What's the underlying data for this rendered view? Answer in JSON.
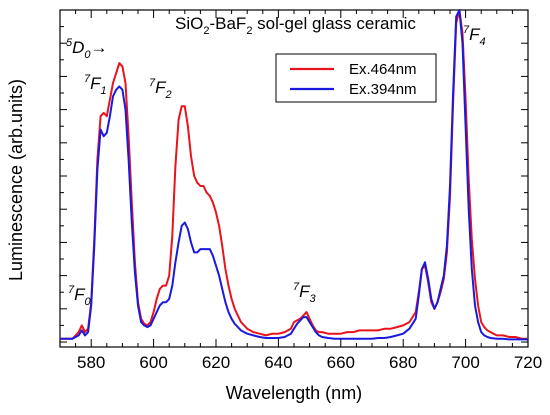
{
  "chart_data": {
    "type": "line",
    "title_main": "SiO",
    "title_sub1": "2",
    "title_mid": "-BaF",
    "title_sub2": "2",
    "title_tail": " sol-gel glass ceramic",
    "xlabel": "Wavelength (nm)",
    "ylabel": "Luminescence (arb.units)",
    "xlim": [
      570,
      720
    ],
    "ylim": [
      0,
      1.0
    ],
    "x_ticks": [
      580,
      600,
      620,
      640,
      660,
      680,
      700,
      720
    ],
    "x_tick_labels": [
      "580",
      "600",
      "620",
      "640",
      "660",
      "680",
      "700",
      "720"
    ],
    "grid": false,
    "legend_position": "top-right",
    "colors": {
      "red": "#e8141c",
      "blue": "#1a1adf"
    },
    "series": [
      {
        "name": "Ex.464nm",
        "color": "#e8141c",
        "x": [
          570,
          572,
          574,
          575,
          576,
          577,
          578,
          579,
          580,
          581,
          582,
          583,
          584,
          585,
          586,
          587,
          588,
          589,
          590,
          591,
          592,
          593,
          594,
          595,
          596,
          597,
          598,
          599,
          600,
          601,
          602,
          603,
          604,
          605,
          606,
          607,
          608,
          609,
          610,
          611,
          612,
          613,
          614,
          615,
          616,
          617,
          618,
          619,
          620,
          621,
          622,
          623,
          624,
          625,
          626,
          627,
          628,
          630,
          632,
          634,
          636,
          638,
          640,
          642,
          644,
          645,
          646,
          647,
          648,
          649,
          650,
          651,
          652,
          653,
          654,
          656,
          658,
          660,
          662,
          664,
          666,
          668,
          670,
          672,
          674,
          676,
          678,
          680,
          682,
          684,
          685,
          686,
          687,
          688,
          689,
          690,
          691,
          692,
          693,
          694,
          695,
          696,
          697,
          698,
          699,
          700,
          701,
          702,
          703,
          704,
          705,
          706,
          707,
          708,
          710,
          712,
          714,
          716,
          718,
          720
        ],
        "y": [
          0.01,
          0.01,
          0.01,
          0.02,
          0.03,
          0.05,
          0.03,
          0.04,
          0.12,
          0.31,
          0.55,
          0.68,
          0.69,
          0.68,
          0.73,
          0.78,
          0.81,
          0.84,
          0.83,
          0.78,
          0.62,
          0.42,
          0.24,
          0.12,
          0.07,
          0.055,
          0.05,
          0.06,
          0.09,
          0.13,
          0.16,
          0.17,
          0.17,
          0.2,
          0.32,
          0.53,
          0.67,
          0.71,
          0.71,
          0.65,
          0.56,
          0.5,
          0.48,
          0.47,
          0.47,
          0.45,
          0.44,
          0.42,
          0.39,
          0.35,
          0.29,
          0.22,
          0.17,
          0.13,
          0.1,
          0.08,
          0.06,
          0.04,
          0.03,
          0.025,
          0.02,
          0.025,
          0.025,
          0.03,
          0.04,
          0.06,
          0.065,
          0.07,
          0.08,
          0.09,
          0.07,
          0.05,
          0.035,
          0.03,
          0.03,
          0.025,
          0.025,
          0.025,
          0.03,
          0.03,
          0.035,
          0.035,
          0.035,
          0.035,
          0.04,
          0.04,
          0.045,
          0.05,
          0.06,
          0.09,
          0.15,
          0.22,
          0.23,
          0.18,
          0.12,
          0.1,
          0.12,
          0.15,
          0.19,
          0.27,
          0.44,
          0.72,
          0.96,
          1.0,
          0.93,
          0.73,
          0.49,
          0.31,
          0.19,
          0.11,
          0.06,
          0.045,
          0.035,
          0.03,
          0.02,
          0.02,
          0.015,
          0.015,
          0.01,
          0.01
        ]
      },
      {
        "name": "Ex.394nm",
        "color": "#1a1adf",
        "x": [
          570,
          572,
          574,
          575,
          576,
          577,
          578,
          579,
          580,
          581,
          582,
          583,
          584,
          585,
          586,
          587,
          588,
          589,
          590,
          591,
          592,
          593,
          594,
          595,
          596,
          597,
          598,
          599,
          600,
          601,
          602,
          603,
          604,
          605,
          606,
          607,
          608,
          609,
          610,
          611,
          612,
          613,
          614,
          615,
          616,
          617,
          618,
          619,
          620,
          621,
          622,
          623,
          624,
          625,
          626,
          627,
          628,
          630,
          632,
          634,
          636,
          638,
          640,
          642,
          644,
          645,
          646,
          647,
          648,
          649,
          650,
          651,
          652,
          653,
          654,
          656,
          658,
          660,
          662,
          664,
          666,
          668,
          670,
          672,
          674,
          676,
          678,
          680,
          682,
          684,
          685,
          686,
          687,
          688,
          689,
          690,
          691,
          692,
          693,
          694,
          695,
          696,
          697,
          698,
          699,
          700,
          701,
          702,
          703,
          704,
          705,
          706,
          707,
          708,
          710,
          712,
          714,
          716,
          718,
          720
        ],
        "y": [
          0.01,
          0.01,
          0.01,
          0.015,
          0.02,
          0.035,
          0.02,
          0.03,
          0.11,
          0.29,
          0.52,
          0.64,
          0.62,
          0.63,
          0.68,
          0.74,
          0.76,
          0.77,
          0.76,
          0.7,
          0.55,
          0.36,
          0.21,
          0.11,
          0.06,
          0.05,
          0.045,
          0.05,
          0.07,
          0.09,
          0.11,
          0.12,
          0.12,
          0.13,
          0.17,
          0.24,
          0.3,
          0.35,
          0.36,
          0.34,
          0.3,
          0.27,
          0.27,
          0.28,
          0.28,
          0.28,
          0.28,
          0.26,
          0.23,
          0.2,
          0.16,
          0.12,
          0.09,
          0.07,
          0.055,
          0.045,
          0.035,
          0.025,
          0.02,
          0.015,
          0.012,
          0.012,
          0.012,
          0.015,
          0.025,
          0.04,
          0.055,
          0.065,
          0.075,
          0.075,
          0.06,
          0.045,
          0.03,
          0.02,
          0.015,
          0.012,
          0.01,
          0.01,
          0.01,
          0.01,
          0.01,
          0.01,
          0.01,
          0.012,
          0.012,
          0.015,
          0.02,
          0.025,
          0.04,
          0.07,
          0.14,
          0.22,
          0.24,
          0.19,
          0.13,
          0.1,
          0.12,
          0.16,
          0.2,
          0.29,
          0.47,
          0.75,
          0.98,
          1.0,
          0.9,
          0.65,
          0.4,
          0.22,
          0.11,
          0.06,
          0.03,
          0.02,
          0.015,
          0.012,
          0.01,
          0.01,
          0.008,
          0.008,
          0.008,
          0.008
        ]
      }
    ],
    "annotations": [
      {
        "id": "5d0",
        "sup": "5",
        "main": "D",
        "sub": "0",
        "tail": "→"
      },
      {
        "id": "7f0",
        "sup": "7",
        "main": "F",
        "sub": "0",
        "tail": ""
      },
      {
        "id": "7f1",
        "sup": "7",
        "main": "F",
        "sub": "1",
        "tail": ""
      },
      {
        "id": "7f2",
        "sup": "7",
        "main": "F",
        "sub": "2",
        "tail": ""
      },
      {
        "id": "7f3",
        "sup": "7",
        "main": "F",
        "sub": "3",
        "tail": ""
      },
      {
        "id": "7f4",
        "sup": "7",
        "main": "F",
        "sub": "4",
        "tail": ""
      }
    ]
  }
}
